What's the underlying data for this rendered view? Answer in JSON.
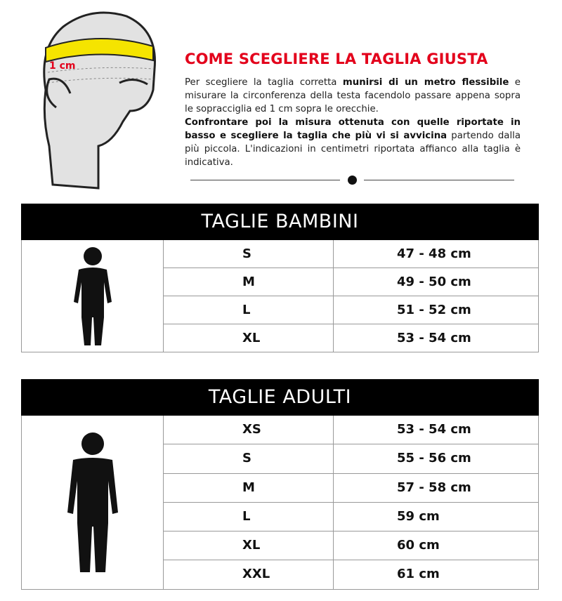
{
  "illustration": {
    "label": "1 cm"
  },
  "title": "COME SCEGLIERE LA TAGLIA GIUSTA",
  "intro": {
    "p1": "Per scegliere la taglia corretta ",
    "p1_bold": "munirsi di un metro flessibile",
    "p2": " e misurare la circonferenza della testa facendolo passare appena sopra le sopracciglia ed 1 cm sopra le orecchie.",
    "p3_bold": "Confrontare poi la misura ottenuta con quelle riportate in basso e scegliere la taglia che più vi si avvicina",
    "p3": " partendo dalla più piccola. L'indicazioni in centimetri riportata affianco alla taglia è indicativa."
  },
  "kids": {
    "title": "TAGLIE BAMBINI",
    "rows": [
      {
        "size": "S",
        "cm": "47 - 48 cm"
      },
      {
        "size": "M",
        "cm": "49 - 50 cm"
      },
      {
        "size": "L",
        "cm": "51 - 52 cm"
      },
      {
        "size": "XL",
        "cm": "53 - 54 cm"
      }
    ]
  },
  "adults": {
    "title": "TAGLIE ADULTI",
    "rows": [
      {
        "size": "XS",
        "cm": "53 - 54 cm"
      },
      {
        "size": "S",
        "cm": "55 - 56 cm"
      },
      {
        "size": "M",
        "cm": "57 - 58 cm"
      },
      {
        "size": "L",
        "cm": "59 cm"
      },
      {
        "size": "XL",
        "cm": "60 cm"
      },
      {
        "size": "XXL",
        "cm": "61 cm"
      }
    ]
  },
  "colors": {
    "accent": "#e3001b",
    "tape": "#f5e400",
    "header": "#000000"
  }
}
